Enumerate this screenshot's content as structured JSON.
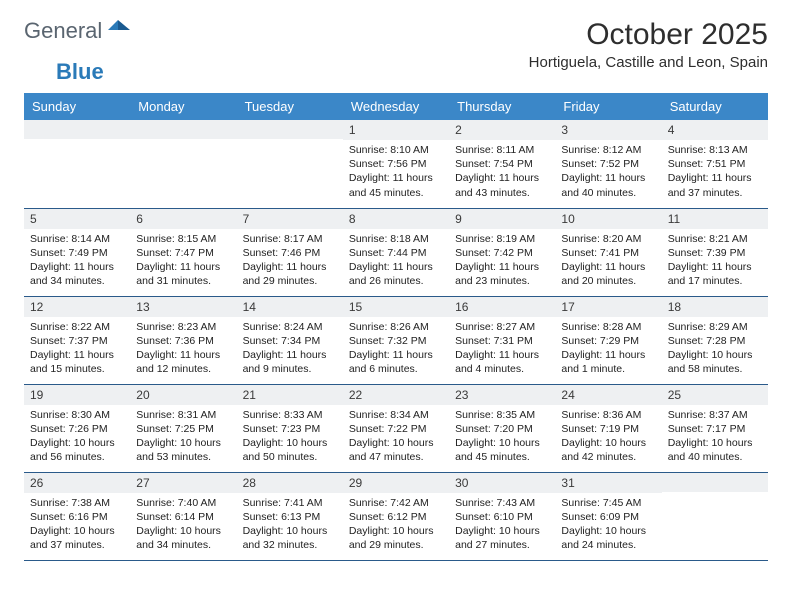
{
  "brand": {
    "part1": "General",
    "part2": "Blue"
  },
  "title": "October 2025",
  "location": "Hortiguela, Castille and Leon, Spain",
  "colors": {
    "header_bg": "#3b87c8",
    "header_text": "#ffffff",
    "daybar_bg": "#eef0f2",
    "border": "#2a5a8a",
    "logo_gray": "#5a6570",
    "logo_blue": "#2a7ab8"
  },
  "fonts": {
    "title_size": 30,
    "location_size": 15,
    "header_size": 13,
    "daynum_size": 12,
    "body_size": 10.5
  },
  "weekdays": [
    "Sunday",
    "Monday",
    "Tuesday",
    "Wednesday",
    "Thursday",
    "Friday",
    "Saturday"
  ],
  "weeks": [
    [
      null,
      null,
      null,
      {
        "n": 1,
        "sr": "8:10 AM",
        "ss": "7:56 PM",
        "dh": 11,
        "dm": 45
      },
      {
        "n": 2,
        "sr": "8:11 AM",
        "ss": "7:54 PM",
        "dh": 11,
        "dm": 43
      },
      {
        "n": 3,
        "sr": "8:12 AM",
        "ss": "7:52 PM",
        "dh": 11,
        "dm": 40
      },
      {
        "n": 4,
        "sr": "8:13 AM",
        "ss": "7:51 PM",
        "dh": 11,
        "dm": 37
      }
    ],
    [
      {
        "n": 5,
        "sr": "8:14 AM",
        "ss": "7:49 PM",
        "dh": 11,
        "dm": 34
      },
      {
        "n": 6,
        "sr": "8:15 AM",
        "ss": "7:47 PM",
        "dh": 11,
        "dm": 31
      },
      {
        "n": 7,
        "sr": "8:17 AM",
        "ss": "7:46 PM",
        "dh": 11,
        "dm": 29
      },
      {
        "n": 8,
        "sr": "8:18 AM",
        "ss": "7:44 PM",
        "dh": 11,
        "dm": 26
      },
      {
        "n": 9,
        "sr": "8:19 AM",
        "ss": "7:42 PM",
        "dh": 11,
        "dm": 23
      },
      {
        "n": 10,
        "sr": "8:20 AM",
        "ss": "7:41 PM",
        "dh": 11,
        "dm": 20
      },
      {
        "n": 11,
        "sr": "8:21 AM",
        "ss": "7:39 PM",
        "dh": 11,
        "dm": 17
      }
    ],
    [
      {
        "n": 12,
        "sr": "8:22 AM",
        "ss": "7:37 PM",
        "dh": 11,
        "dm": 15
      },
      {
        "n": 13,
        "sr": "8:23 AM",
        "ss": "7:36 PM",
        "dh": 11,
        "dm": 12
      },
      {
        "n": 14,
        "sr": "8:24 AM",
        "ss": "7:34 PM",
        "dh": 11,
        "dm": 9
      },
      {
        "n": 15,
        "sr": "8:26 AM",
        "ss": "7:32 PM",
        "dh": 11,
        "dm": 6
      },
      {
        "n": 16,
        "sr": "8:27 AM",
        "ss": "7:31 PM",
        "dh": 11,
        "dm": 4
      },
      {
        "n": 17,
        "sr": "8:28 AM",
        "ss": "7:29 PM",
        "dh": 11,
        "dm": 1
      },
      {
        "n": 18,
        "sr": "8:29 AM",
        "ss": "7:28 PM",
        "dh": 10,
        "dm": 58
      }
    ],
    [
      {
        "n": 19,
        "sr": "8:30 AM",
        "ss": "7:26 PM",
        "dh": 10,
        "dm": 56
      },
      {
        "n": 20,
        "sr": "8:31 AM",
        "ss": "7:25 PM",
        "dh": 10,
        "dm": 53
      },
      {
        "n": 21,
        "sr": "8:33 AM",
        "ss": "7:23 PM",
        "dh": 10,
        "dm": 50
      },
      {
        "n": 22,
        "sr": "8:34 AM",
        "ss": "7:22 PM",
        "dh": 10,
        "dm": 47
      },
      {
        "n": 23,
        "sr": "8:35 AM",
        "ss": "7:20 PM",
        "dh": 10,
        "dm": 45
      },
      {
        "n": 24,
        "sr": "8:36 AM",
        "ss": "7:19 PM",
        "dh": 10,
        "dm": 42
      },
      {
        "n": 25,
        "sr": "8:37 AM",
        "ss": "7:17 PM",
        "dh": 10,
        "dm": 40
      }
    ],
    [
      {
        "n": 26,
        "sr": "7:38 AM",
        "ss": "6:16 PM",
        "dh": 10,
        "dm": 37
      },
      {
        "n": 27,
        "sr": "7:40 AM",
        "ss": "6:14 PM",
        "dh": 10,
        "dm": 34
      },
      {
        "n": 28,
        "sr": "7:41 AM",
        "ss": "6:13 PM",
        "dh": 10,
        "dm": 32
      },
      {
        "n": 29,
        "sr": "7:42 AM",
        "ss": "6:12 PM",
        "dh": 10,
        "dm": 29
      },
      {
        "n": 30,
        "sr": "7:43 AM",
        "ss": "6:10 PM",
        "dh": 10,
        "dm": 27
      },
      {
        "n": 31,
        "sr": "7:45 AM",
        "ss": "6:09 PM",
        "dh": 10,
        "dm": 24
      },
      null
    ]
  ],
  "labels": {
    "sunrise": "Sunrise:",
    "sunset": "Sunset:",
    "daylight": "Daylight:",
    "hours": "hours",
    "and": "and",
    "minutes": "minutes.",
    "minute": "minute."
  }
}
